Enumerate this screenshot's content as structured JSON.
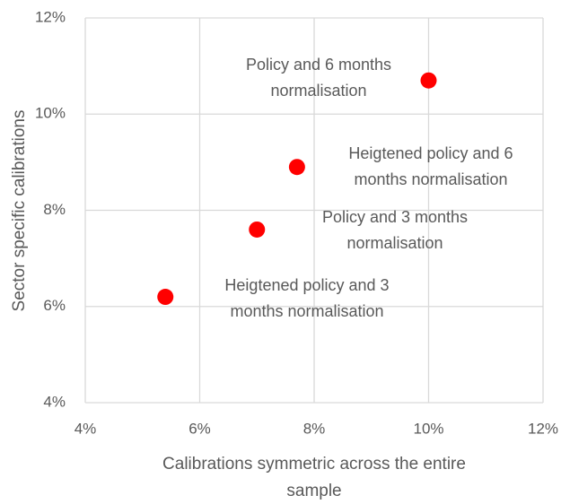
{
  "chart_data": {
    "type": "scatter",
    "x_label": [
      "Calibrations symmetric across the entire",
      "sample"
    ],
    "y_label": "Sector specific calibrations",
    "x": [
      5.4,
      7.0,
      7.7,
      10.0
    ],
    "values": [
      6.2,
      7.6,
      8.9,
      10.7
    ],
    "point_labels": [
      [
        "Heigtened policy and 3",
        "months normalisation"
      ],
      [
        "Policy and 3 months",
        "normalisation"
      ],
      [
        "Heigtened policy and 6",
        "months normalisation"
      ],
      [
        "Policy and 6 months",
        "normalisation"
      ]
    ],
    "color": "#ff0000",
    "xlim": [
      4,
      12
    ],
    "xticks": [
      {
        "value": 4,
        "label": "4%"
      },
      {
        "value": 6,
        "label": "6%"
      },
      {
        "value": 8,
        "label": "8%"
      },
      {
        "value": 10,
        "label": "10%"
      },
      {
        "value": 12,
        "label": "12%"
      }
    ],
    "ylim": [
      4,
      12
    ],
    "yticks": [
      {
        "value": 4,
        "label": "4%"
      },
      {
        "value": 6,
        "label": "6%"
      },
      {
        "value": 8,
        "label": "8%"
      },
      {
        "value": 10,
        "label": "10%"
      },
      {
        "value": 12,
        "label": "12%"
      }
    ],
    "grid": true
  }
}
